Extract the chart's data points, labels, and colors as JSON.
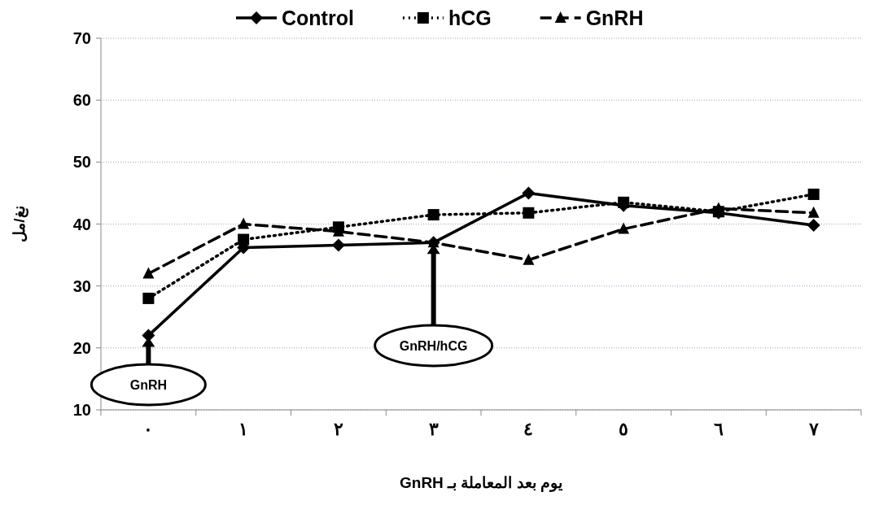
{
  "chart_data": {
    "type": "line",
    "xlabel": "يوم بعد المعاملة بـ  GnRH",
    "ylabel": "نغ/مل",
    "categories": [
      "٠",
      "١",
      "٢",
      "٣",
      "٤",
      "٥",
      "٦",
      "٧"
    ],
    "ylim": [
      10,
      70
    ],
    "yticks": [
      10,
      20,
      30,
      40,
      50,
      60,
      70
    ],
    "grid": "y",
    "legend": "top",
    "series": [
      {
        "name": "Control",
        "color": "#000000",
        "marker": "diamond",
        "line_style": "solid",
        "values": [
          22,
          36.2,
          36.6,
          37,
          45,
          43,
          41.8,
          39.8
        ]
      },
      {
        "name": "hCG",
        "color": "#000000",
        "marker": "square",
        "line_style": "dotted",
        "values": [
          28,
          37.5,
          39.5,
          41.5,
          41.8,
          43.5,
          42,
          44.8
        ]
      },
      {
        "name": "GnRH",
        "color": "#000000",
        "marker": "triangle",
        "line_style": "dashed",
        "values": [
          32,
          40,
          38.8,
          37,
          34.2,
          39.2,
          42.5,
          41.8
        ]
      }
    ],
    "annotations": [
      "GnRH",
      "GnRH/hCG"
    ]
  }
}
